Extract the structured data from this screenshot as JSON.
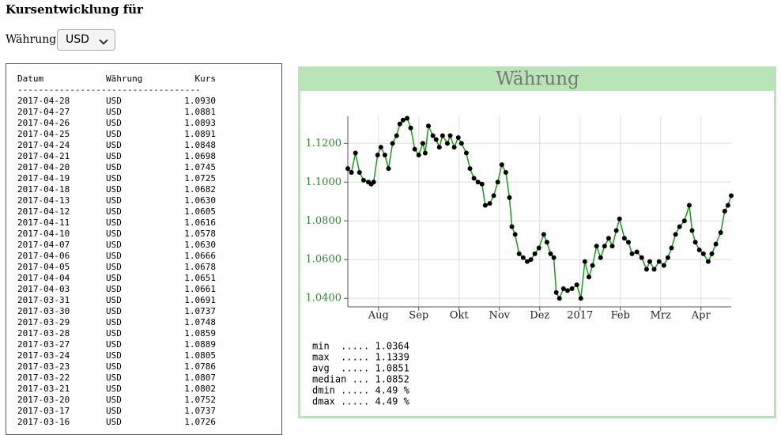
{
  "header": {
    "title": "Kursentwicklung für",
    "currency_label": "Währung:",
    "currency_selected": "USD"
  },
  "table": {
    "columns": [
      "Datum",
      "Währung",
      "Kurs"
    ],
    "separator": "-----------------------------------",
    "rows": [
      [
        "2017-04-28",
        "USD",
        "1.0930"
      ],
      [
        "2017-04-27",
        "USD",
        "1.0881"
      ],
      [
        "2017-04-26",
        "USD",
        "1.0893"
      ],
      [
        "2017-04-25",
        "USD",
        "1.0891"
      ],
      [
        "2017-04-24",
        "USD",
        "1.0848"
      ],
      [
        "2017-04-21",
        "USD",
        "1.0698"
      ],
      [
        "2017-04-20",
        "USD",
        "1.0745"
      ],
      [
        "2017-04-19",
        "USD",
        "1.0725"
      ],
      [
        "2017-04-18",
        "USD",
        "1.0682"
      ],
      [
        "2017-04-13",
        "USD",
        "1.0630"
      ],
      [
        "2017-04-12",
        "USD",
        "1.0605"
      ],
      [
        "2017-04-11",
        "USD",
        "1.0616"
      ],
      [
        "2017-04-10",
        "USD",
        "1.0578"
      ],
      [
        "2017-04-07",
        "USD",
        "1.0630"
      ],
      [
        "2017-04-06",
        "USD",
        "1.0666"
      ],
      [
        "2017-04-05",
        "USD",
        "1.0678"
      ],
      [
        "2017-04-04",
        "USD",
        "1.0651"
      ],
      [
        "2017-04-03",
        "USD",
        "1.0661"
      ],
      [
        "2017-03-31",
        "USD",
        "1.0691"
      ],
      [
        "2017-03-30",
        "USD",
        "1.0737"
      ],
      [
        "2017-03-29",
        "USD",
        "1.0748"
      ],
      [
        "2017-03-28",
        "USD",
        "1.0859"
      ],
      [
        "2017-03-27",
        "USD",
        "1.0889"
      ],
      [
        "2017-03-24",
        "USD",
        "1.0805"
      ],
      [
        "2017-03-23",
        "USD",
        "1.0786"
      ],
      [
        "2017-03-22",
        "USD",
        "1.0807"
      ],
      [
        "2017-03-21",
        "USD",
        "1.0802"
      ],
      [
        "2017-03-20",
        "USD",
        "1.0752"
      ],
      [
        "2017-03-17",
        "USD",
        "1.0737"
      ],
      [
        "2017-03-16",
        "USD",
        "1.0726"
      ]
    ]
  },
  "chart_data": {
    "type": "line",
    "title": "Währung",
    "color": "#1a9a1a",
    "marker_color": "#000000",
    "grid": true,
    "x": [
      0.24,
      0.33,
      0.43,
      0.53,
      0.63,
      0.75,
      0.82,
      0.88,
      0.98,
      1.06,
      1.16,
      1.25,
      1.35,
      1.45,
      1.53,
      1.61,
      1.71,
      1.8,
      1.9,
      2.0,
      2.1,
      2.16,
      2.24,
      2.35,
      2.43,
      2.51,
      2.59,
      2.71,
      2.78,
      2.88,
      2.98,
      3.06,
      3.18,
      3.27,
      3.37,
      3.47,
      3.57,
      3.65,
      3.76,
      3.86,
      3.96,
      4.06,
      4.16,
      4.25,
      4.31,
      4.39,
      4.49,
      4.59,
      4.69,
      4.78,
      4.88,
      4.98,
      5.1,
      5.18,
      5.27,
      5.35,
      5.41,
      5.49,
      5.59,
      5.69,
      5.8,
      5.92,
      6.02,
      6.12,
      6.22,
      6.31,
      6.41,
      6.51,
      6.61,
      6.71,
      6.8,
      6.9,
      6.98,
      7.1,
      7.2,
      7.29,
      7.41,
      7.53,
      7.65,
      7.73,
      7.84,
      7.96,
      8.08,
      8.18,
      8.27,
      8.37,
      8.47,
      8.59,
      8.71,
      8.78,
      8.86,
      8.96,
      9.06,
      9.18,
      9.27,
      9.37,
      9.49,
      9.59,
      9.67,
      9.75
    ],
    "values": [
      1.107,
      1.105,
      1.115,
      1.105,
      1.101,
      1.1,
      1.099,
      1.1,
      1.114,
      1.118,
      1.114,
      1.107,
      1.12,
      1.124,
      1.13,
      1.132,
      1.133,
      1.128,
      1.117,
      1.114,
      1.12,
      1.115,
      1.129,
      1.124,
      1.122,
      1.118,
      1.124,
      1.12,
      1.124,
      1.118,
      1.123,
      1.12,
      1.115,
      1.107,
      1.102,
      1.1,
      1.099,
      1.088,
      1.089,
      1.093,
      1.1,
      1.109,
      1.105,
      1.092,
      1.077,
      1.073,
      1.063,
      1.061,
      1.059,
      1.06,
      1.063,
      1.066,
      1.073,
      1.069,
      1.063,
      1.061,
      1.043,
      1.04,
      1.045,
      1.044,
      1.045,
      1.047,
      1.04,
      1.059,
      1.051,
      1.057,
      1.067,
      1.061,
      1.067,
      1.071,
      1.067,
      1.075,
      1.081,
      1.071,
      1.069,
      1.063,
      1.064,
      1.061,
      1.055,
      1.059,
      1.055,
      1.059,
      1.057,
      1.061,
      1.066,
      1.073,
      1.077,
      1.08,
      1.088,
      1.075,
      1.069,
      1.065,
      1.063,
      1.059,
      1.063,
      1.068,
      1.074,
      1.085,
      1.088,
      1.093
    ],
    "xlim": [
      0.24,
      9.75
    ],
    "xticks": [
      {
        "value": 1,
        "label": "Aug"
      },
      {
        "value": 2,
        "label": "Sep"
      },
      {
        "value": 3,
        "label": "Okt"
      },
      {
        "value": 4,
        "label": "Nov"
      },
      {
        "value": 5,
        "label": "Dez"
      },
      {
        "value": 6,
        "label": "2017"
      },
      {
        "value": 7,
        "label": "Feb"
      },
      {
        "value": 8,
        "label": "Mrz"
      },
      {
        "value": 9,
        "label": "Apr"
      }
    ],
    "ylim": [
      1.0356,
      1.134
    ],
    "yticks": [
      {
        "value": 1.04,
        "label": "1.0400"
      },
      {
        "value": 1.06,
        "label": "1.0600"
      },
      {
        "value": 1.08,
        "label": "1.0800"
      },
      {
        "value": 1.1,
        "label": "1.1000"
      },
      {
        "value": 1.12,
        "label": "1.1200"
      }
    ],
    "annotations": [
      "min  ..... 1.0364",
      "max  ..... 1.1339",
      "avg  ..... 1.0851",
      "median ... 1.0852",
      "dmin ..... 4.49 %",
      "dmax ..... 4.49 %"
    ]
  }
}
